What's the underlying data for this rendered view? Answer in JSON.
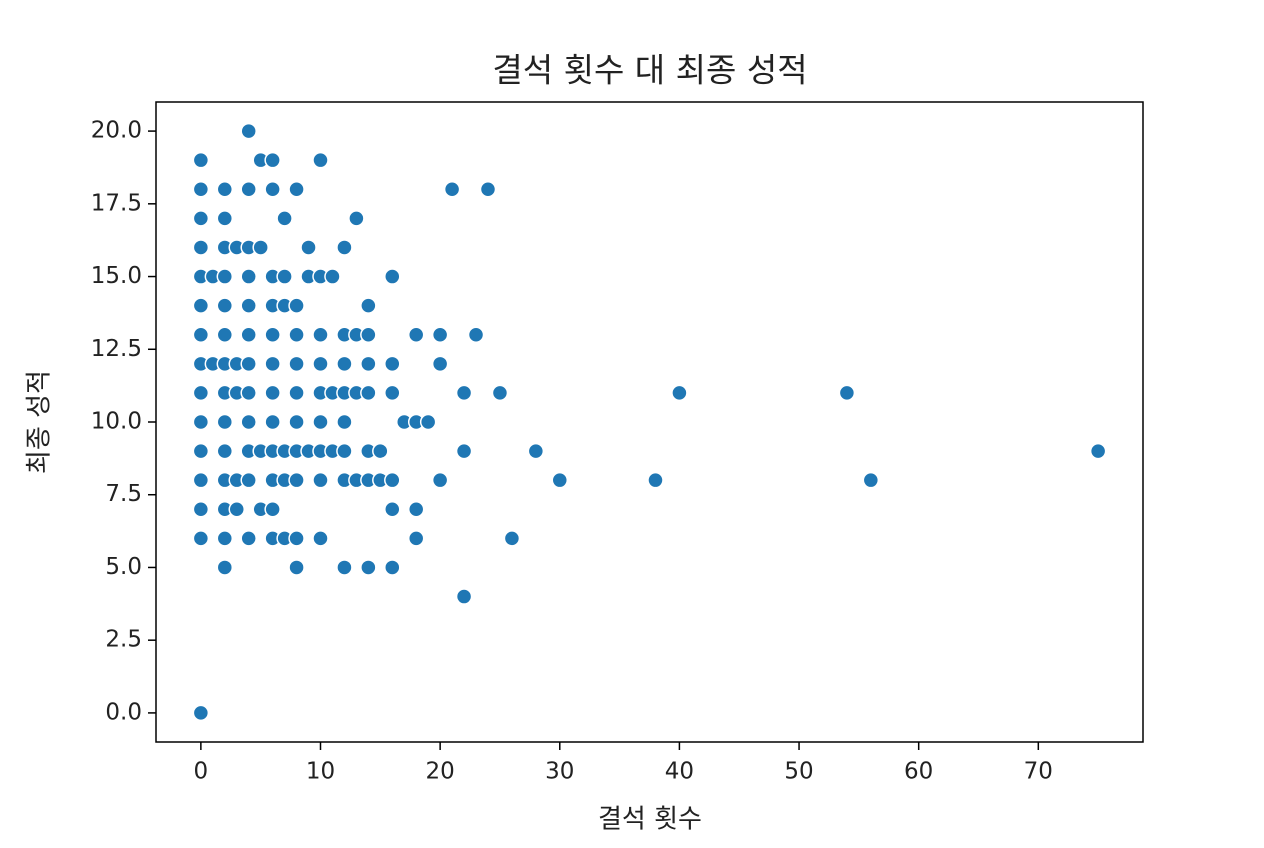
{
  "chart_data": {
    "type": "scatter",
    "title": "결석 횟수 대 최종 성적",
    "x_label": "결석 횟수",
    "y_label": "최종 성적",
    "color": "#1f77b4",
    "x": [
      4,
      0,
      5,
      6,
      10,
      0,
      2,
      4,
      6,
      8,
      21,
      24,
      0,
      2,
      7,
      13,
      0,
      2,
      3,
      4,
      5,
      9,
      12,
      0,
      1,
      2,
      4,
      6,
      7,
      9,
      10,
      11,
      16,
      0,
      2,
      4,
      6,
      7,
      8,
      14,
      0,
      2,
      4,
      6,
      8,
      10,
      12,
      13,
      14,
      18,
      20,
      23,
      0,
      1,
      2,
      3,
      4,
      6,
      8,
      10,
      12,
      14,
      16,
      20,
      0,
      2,
      3,
      4,
      6,
      8,
      10,
      11,
      12,
      13,
      14,
      16,
      22,
      25,
      40,
      54,
      0,
      2,
      4,
      6,
      8,
      10,
      12,
      17,
      18,
      19,
      0,
      2,
      4,
      5,
      6,
      7,
      8,
      9,
      10,
      11,
      12,
      14,
      15,
      22,
      28,
      75,
      0,
      2,
      3,
      4,
      6,
      7,
      8,
      10,
      12,
      13,
      14,
      15,
      16,
      20,
      30,
      38,
      56,
      0,
      2,
      3,
      5,
      6,
      16,
      18,
      0,
      2,
      4,
      6,
      7,
      8,
      10,
      18,
      26,
      2,
      8,
      12,
      14,
      16,
      22,
      0
    ],
    "values": [
      20,
      19,
      19,
      19,
      19,
      18,
      18,
      18,
      18,
      18,
      18,
      18,
      17,
      17,
      17,
      17,
      16,
      16,
      16,
      16,
      16,
      16,
      16,
      15,
      15,
      15,
      15,
      15,
      15,
      15,
      15,
      15,
      15,
      14,
      14,
      14,
      14,
      14,
      14,
      14,
      13,
      13,
      13,
      13,
      13,
      13,
      13,
      13,
      13,
      13,
      13,
      13,
      12,
      12,
      12,
      12,
      12,
      12,
      12,
      12,
      12,
      12,
      12,
      12,
      11,
      11,
      11,
      11,
      11,
      11,
      11,
      11,
      11,
      11,
      11,
      11,
      11,
      11,
      11,
      11,
      10,
      10,
      10,
      10,
      10,
      10,
      10,
      10,
      10,
      10,
      9,
      9,
      9,
      9,
      9,
      9,
      9,
      9,
      9,
      9,
      9,
      9,
      9,
      9,
      9,
      9,
      8,
      8,
      8,
      8,
      8,
      8,
      8,
      8,
      8,
      8,
      8,
      8,
      8,
      8,
      8,
      8,
      8,
      7,
      7,
      7,
      7,
      7,
      7,
      7,
      6,
      6,
      6,
      6,
      6,
      6,
      6,
      6,
      6,
      5,
      5,
      5,
      5,
      5,
      4,
      0
    ],
    "xlim": [
      -3.75,
      78.75
    ],
    "ylim": [
      -1,
      21
    ],
    "xticks": [
      0,
      10,
      20,
      30,
      40,
      50,
      60,
      70
    ],
    "yticks": [
      {
        "value": 0,
        "label": "0.0"
      },
      2.5,
      {
        "value": 5,
        "label": "5.0"
      },
      7.5,
      {
        "value": 10,
        "label": "10.0"
      },
      12.5,
      {
        "value": 15,
        "label": "15.0"
      },
      17.5,
      {
        "value": 20,
        "label": "20.0"
      }
    ]
  }
}
